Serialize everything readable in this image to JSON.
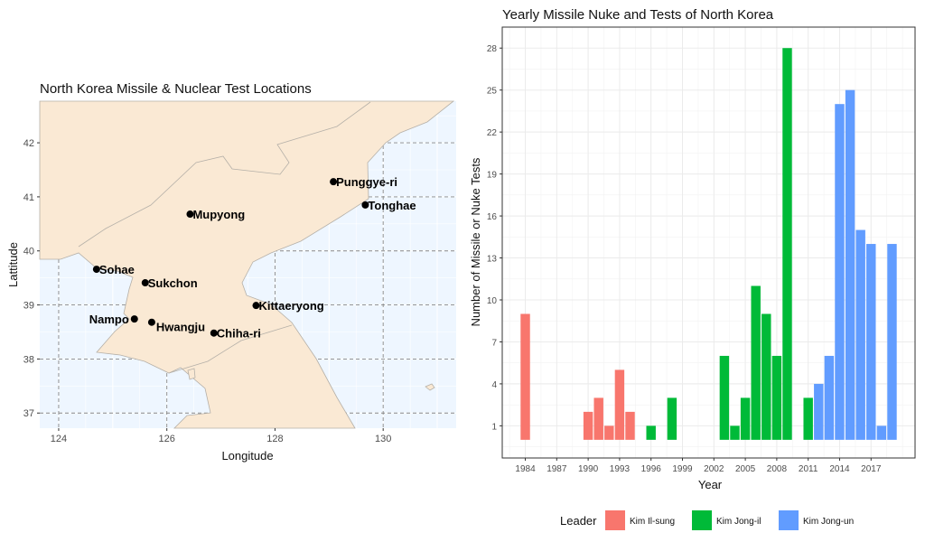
{
  "chart_data": [
    {
      "type": "scatter",
      "title": "North Korea Missile & Nuclear Test Locations",
      "xlabel": "Longitude",
      "ylabel": "Lattitude",
      "xlim": [
        123.65,
        131.35
      ],
      "ylim": [
        36.72,
        42.77
      ],
      "xticks": [
        124,
        126,
        128,
        130
      ],
      "yticks": [
        37,
        38,
        39,
        40,
        41,
        42
      ],
      "colors": {
        "land": "#FAE9D4",
        "water": "#EEF6FF",
        "border": "#B5B0A8",
        "point": "#000000"
      },
      "points": [
        {
          "name": "Punggye-ri",
          "lon": 129.08,
          "lat": 41.28
        },
        {
          "name": "Tonghae",
          "lon": 129.67,
          "lat": 40.85
        },
        {
          "name": "Mupyong",
          "lon": 126.43,
          "lat": 40.68
        },
        {
          "name": "Sohae",
          "lon": 124.7,
          "lat": 39.66
        },
        {
          "name": "Sukchon",
          "lon": 125.6,
          "lat": 39.41
        },
        {
          "name": "Kittaeryong",
          "lon": 127.65,
          "lat": 38.99
        },
        {
          "name": "Nampo",
          "lon": 125.4,
          "lat": 38.74
        },
        {
          "name": "Hwangju",
          "lon": 125.72,
          "lat": 38.68
        },
        {
          "name": "Chiha-ri",
          "lon": 126.87,
          "lat": 38.48
        }
      ]
    },
    {
      "type": "bar",
      "title": "Yearly Missile Nuke and Tests of North Korea",
      "xlabel": "Year",
      "ylabel": "Number of Missile or Nuke Tests",
      "xlim": [
        1981.8,
        2021.2
      ],
      "ylim": [
        -1.3,
        29.5
      ],
      "xticks": [
        1984,
        1987,
        1990,
        1993,
        1996,
        1999,
        2002,
        2005,
        2008,
        2011,
        2014,
        2017
      ],
      "yticks": [
        1,
        4,
        7,
        10,
        13,
        16,
        19,
        22,
        25,
        28
      ],
      "legend_title": "Leader",
      "legend_position": "bottom",
      "series": [
        {
          "name": "Kim Il-sung",
          "color": "#F8766D",
          "x": [
            1984,
            1990,
            1991,
            1992,
            1993,
            1994
          ],
          "values": [
            9,
            2,
            3,
            1,
            5,
            2
          ]
        },
        {
          "name": "Kim Jong-il",
          "color": "#00BA38",
          "x": [
            1996,
            1998,
            2003,
            2004,
            2005,
            2006,
            2007,
            2008,
            2009,
            2011
          ],
          "values": [
            1,
            3,
            6,
            1,
            3,
            11,
            9,
            6,
            28,
            3
          ]
        },
        {
          "name": "Kim Jong-un",
          "color": "#619CFF",
          "x": [
            2012,
            2013,
            2014,
            2015,
            2016,
            2017,
            2018,
            2019
          ],
          "values": [
            4,
            6,
            24,
            25,
            15,
            14,
            1,
            14
          ]
        }
      ]
    }
  ]
}
